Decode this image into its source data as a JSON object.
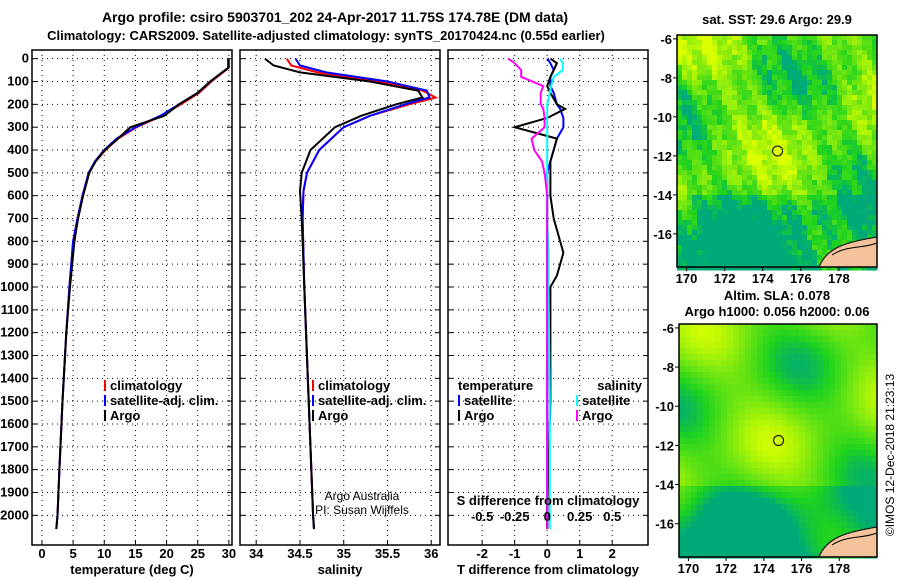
{
  "title": {
    "line1": "Argo profile: csiro 5903701_202 24-Apr-2017 11.75S 174.78E (DM data)",
    "line2": "Climatology: CARS2009. Satellite-adjusted climatology: synTS_20170424.nc (0.55d earlier)"
  },
  "credit": {
    "line1": "Argo Australia",
    "line2": "PI: Susan Wijffels"
  },
  "stamp": "©IMOS 12-Dec-2018 21:23:13",
  "colors": {
    "climatology": "#ff0000",
    "satellite": "#0000ff",
    "argo": "#000000",
    "sal_satellite": "#00ffff",
    "sal_argo": "#ff00ff"
  },
  "chart_data": [
    {
      "type": "line",
      "name": "temperature",
      "xlabel": "temperature (deg C)",
      "xlim": [
        -1.6,
        30.5
      ],
      "ylim": [
        2130,
        -38
      ],
      "xticks": [
        "0",
        "5",
        "10",
        "15",
        "20",
        "25",
        "30"
      ],
      "yticks": [
        "0",
        "100",
        "200",
        "300",
        "400",
        "500",
        "600",
        "700",
        "800",
        "900",
        "1000",
        "1100",
        "1200",
        "1300",
        "1400",
        "1500",
        "1600",
        "1700",
        "1800",
        "1900",
        "2000"
      ],
      "legend": [
        "climatology",
        "satellite-adj. clim.",
        "Argo"
      ],
      "depth": [
        0,
        40,
        100,
        150,
        200,
        250,
        300,
        350,
        400,
        450,
        500,
        600,
        700,
        800,
        1000,
        1200,
        1500,
        1800,
        2000,
        2060
      ],
      "series": [
        {
          "name": "climatology",
          "values": [
            30,
            30,
            27.2,
            25.2,
            22.3,
            19.2,
            15.2,
            12.2,
            10.2,
            8.6,
            7.5,
            6.5,
            5.7,
            5.0,
            4.4,
            3.9,
            3.3,
            2.8,
            2.5,
            2.3
          ]
        },
        {
          "name": "satellite-adj. clim.",
          "values": [
            29.9,
            29.9,
            27,
            25,
            22,
            19,
            15,
            12,
            10,
            8.5,
            7.5,
            6.5,
            5.7,
            5.0,
            4.4,
            3.9,
            3.3,
            2.8,
            2.5,
            2.3
          ]
        },
        {
          "name": "Argo",
          "values": [
            29.9,
            29.9,
            27,
            25,
            22,
            19.6,
            14.2,
            12.2,
            10.1,
            8.6,
            7.6,
            6.6,
            5.8,
            5.2,
            4.5,
            3.9,
            3.3,
            2.8,
            2.5,
            2.3
          ]
        }
      ]
    },
    {
      "type": "line",
      "name": "salinity",
      "xlabel": "salinity",
      "xlim": [
        33.815,
        36.1
      ],
      "ylim": [
        2130,
        -38
      ],
      "xticks": [
        "34",
        "34.5",
        "35",
        "35.5",
        "36"
      ],
      "legend": [
        "climatology",
        "satellite-adj. clim.",
        "Argo"
      ],
      "depth": [
        0,
        30,
        60,
        100,
        140,
        170,
        200,
        250,
        300,
        400,
        500,
        580,
        700,
        1000,
        1500,
        2000,
        2060
      ],
      "series": [
        {
          "name": "climatology",
          "values": [
            34.35,
            34.4,
            34.7,
            35.4,
            35.9,
            36.05,
            35.75,
            35.3,
            35.0,
            34.72,
            34.58,
            34.54,
            34.53,
            34.55,
            34.6,
            34.65,
            34.66
          ]
        },
        {
          "name": "satellite-adj. clim.",
          "values": [
            34.45,
            34.5,
            34.8,
            35.5,
            35.95,
            35.98,
            35.7,
            35.3,
            35.0,
            34.72,
            34.58,
            34.54,
            34.53,
            34.55,
            34.6,
            34.65,
            34.66
          ]
        },
        {
          "name": "Argo",
          "values": [
            34.1,
            34.2,
            34.5,
            35.3,
            35.85,
            35.9,
            35.6,
            35.2,
            34.9,
            34.62,
            34.52,
            34.5,
            34.52,
            34.55,
            34.6,
            34.65,
            34.66
          ]
        }
      ]
    },
    {
      "type": "line",
      "name": "difference",
      "xlabel": "T difference from climatology",
      "s_label": "S difference from climatology",
      "xlim": [
        -3.05,
        3.1
      ],
      "ylim": [
        2130,
        -38
      ],
      "xticks": [
        "-2",
        "-1",
        "0",
        "1",
        "2"
      ],
      "s_ticks": [
        "-0.5",
        "-0.25",
        "0",
        "0.25",
        "0.5"
      ],
      "legend_t_title": "temperature",
      "legend_s_title": "salinity",
      "legend_t": [
        "satellite",
        "Argo"
      ],
      "legend_s": [
        "satellite",
        "Argo"
      ],
      "depth": [
        0,
        20,
        50,
        80,
        120,
        150,
        200,
        220,
        260,
        300,
        350,
        400,
        450,
        500,
        600,
        700,
        850,
        950,
        1000,
        1500,
        2000,
        2060
      ],
      "series": [
        {
          "name": "T satellite",
          "units": "degC",
          "values": [
            0,
            0.1,
            0.2,
            0.1,
            0.1,
            0.2,
            0.3,
            0.4,
            0.5,
            0.5,
            0.3,
            0.2,
            0.1,
            0,
            0,
            0,
            0,
            0,
            0,
            0,
            0,
            0
          ]
        },
        {
          "name": "T Argo",
          "units": "degC",
          "values": [
            0.1,
            0.3,
            0.2,
            0.1,
            0,
            0.1,
            0.3,
            0.55,
            0,
            -1.0,
            0.3,
            0.2,
            0.1,
            0.1,
            0.1,
            0.2,
            0.5,
            0.3,
            0.1,
            0.1,
            0,
            0
          ]
        },
        {
          "name": "S satellite",
          "units": "psu",
          "values": [
            0.1,
            0.12,
            0.12,
            0.05,
            0.03,
            0.02,
            0,
            0,
            0,
            0,
            0,
            0,
            0,
            0,
            0,
            0,
            0.01,
            0.01,
            0.01,
            0.02,
            0.02,
            0.02
          ]
        },
        {
          "name": "S Argo",
          "units": "psu",
          "values": [
            -0.3,
            -0.25,
            -0.2,
            -0.2,
            -0.03,
            -0.05,
            -0.05,
            -0.03,
            -0.02,
            -0.02,
            -0.12,
            -0.1,
            -0.04,
            -0.02,
            0,
            0,
            0,
            0,
            0,
            0,
            0,
            0
          ]
        }
      ]
    },
    {
      "type": "heatmap",
      "name": "sst-map",
      "title": "sat. SST: 29.6 Argo: 29.9",
      "xticks": [
        "170",
        "172",
        "174",
        "176",
        "178"
      ],
      "yticks": [
        "-6",
        "-8",
        "-10",
        "-12",
        "-14",
        "-16"
      ],
      "float_position": {
        "lon": 174.78,
        "lat": -11.75
      }
    },
    {
      "type": "heatmap",
      "name": "sla-map",
      "title": "Altim. SLA: 0.078",
      "subtitle": "Argo h1000: 0.056 h2000: 0.06",
      "xticks": [
        "170",
        "172",
        "174",
        "176",
        "178"
      ],
      "yticks": [
        "-6",
        "-8",
        "-10",
        "-12",
        "-14",
        "-16"
      ],
      "float_position": {
        "lon": 174.78,
        "lat": -11.75
      }
    }
  ]
}
